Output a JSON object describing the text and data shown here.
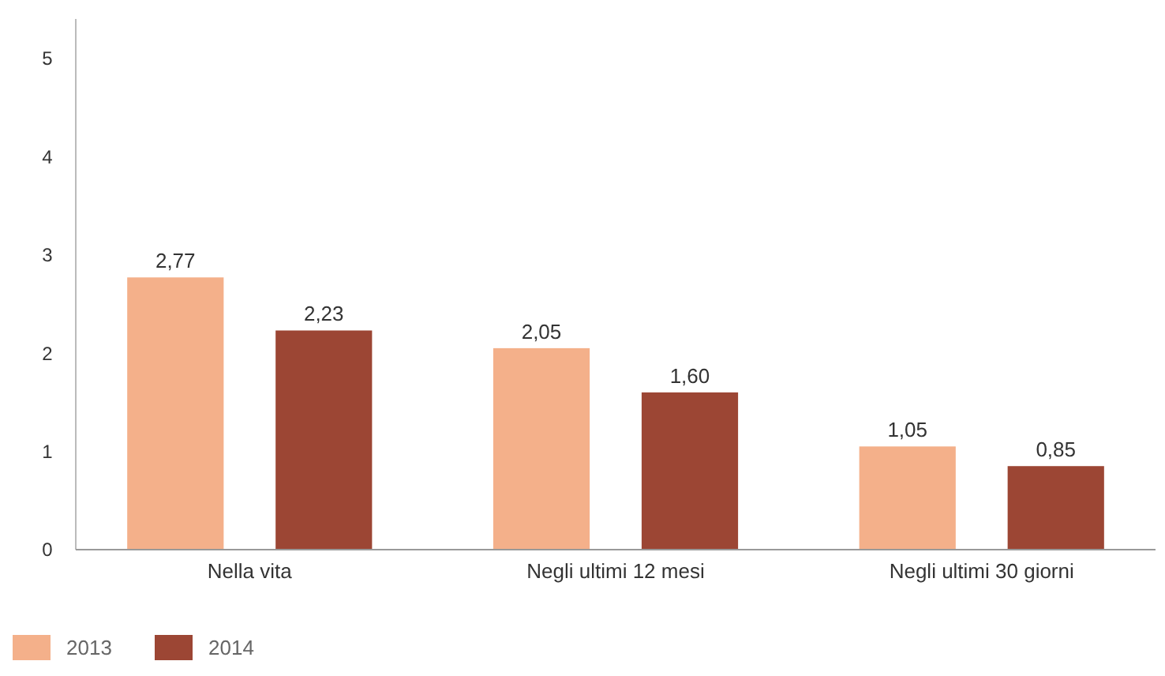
{
  "chart_data": {
    "type": "bar",
    "categories": [
      "Nella vita",
      "Negli ultimi 12 mesi",
      "Negli ultimi 30 giorni"
    ],
    "series": [
      {
        "name": "2013",
        "color": "#f4b08a",
        "values": [
          2.77,
          2.05,
          1.05
        ],
        "value_labels": [
          "2,77",
          "2,05",
          "1,05"
        ]
      },
      {
        "name": "2014",
        "color": "#9c4634",
        "values": [
          2.23,
          1.6,
          0.85
        ],
        "value_labels": [
          "2,23",
          "1,60",
          "0,85"
        ]
      }
    ],
    "ylim": [
      0,
      5.4
    ],
    "yticks": [
      0,
      1,
      2,
      3,
      4,
      5
    ],
    "grid": false,
    "legend": "bottom left"
  }
}
